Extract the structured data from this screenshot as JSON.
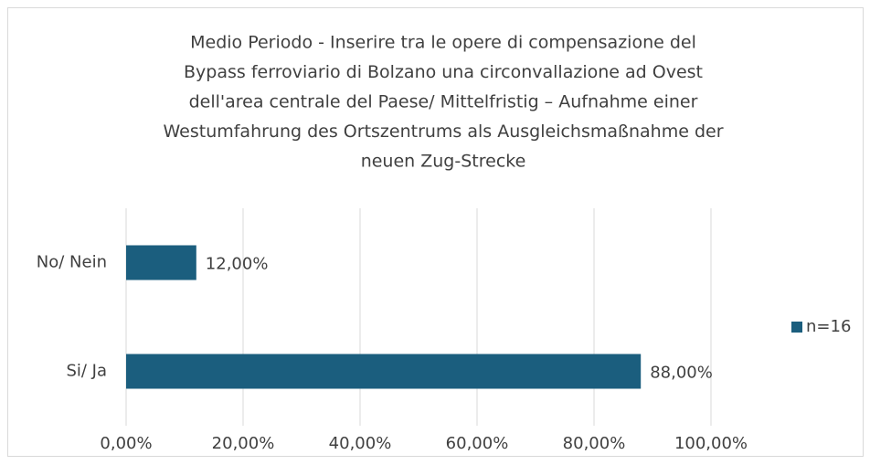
{
  "chart_data": {
    "type": "bar",
    "orientation": "horizontal",
    "title": [
      "Medio Periodo - Inserire tra le opere di compensazione del",
      "Bypass ferroviario di Bolzano una circonvallazione ad Ovest",
      "dell'area centrale del Paese/ Mittelfristig – Aufnahme einer",
      "Westumfahrung des Ortszentrums als Ausgleichsmaßnahme der",
      "neuen Zug-Strecke"
    ],
    "categories": [
      "No/ Nein",
      "Si/ Ja"
    ],
    "series": [
      {
        "name": "n=16",
        "color": "#1b5e7e",
        "values": [
          12,
          88
        ],
        "value_labels": [
          "12,00%",
          "88,00%"
        ]
      }
    ],
    "xlim": [
      0,
      100
    ],
    "xticks": [
      {
        "value": 0,
        "label": "0,00%"
      },
      {
        "value": 20,
        "label": "20,00%"
      },
      {
        "value": 40,
        "label": "40,00%"
      },
      {
        "value": 60,
        "label": "60,00%"
      },
      {
        "value": 80,
        "label": "80,00%"
      },
      {
        "value": 100,
        "label": "100,00%"
      }
    ],
    "grid": true,
    "legend": "right"
  }
}
